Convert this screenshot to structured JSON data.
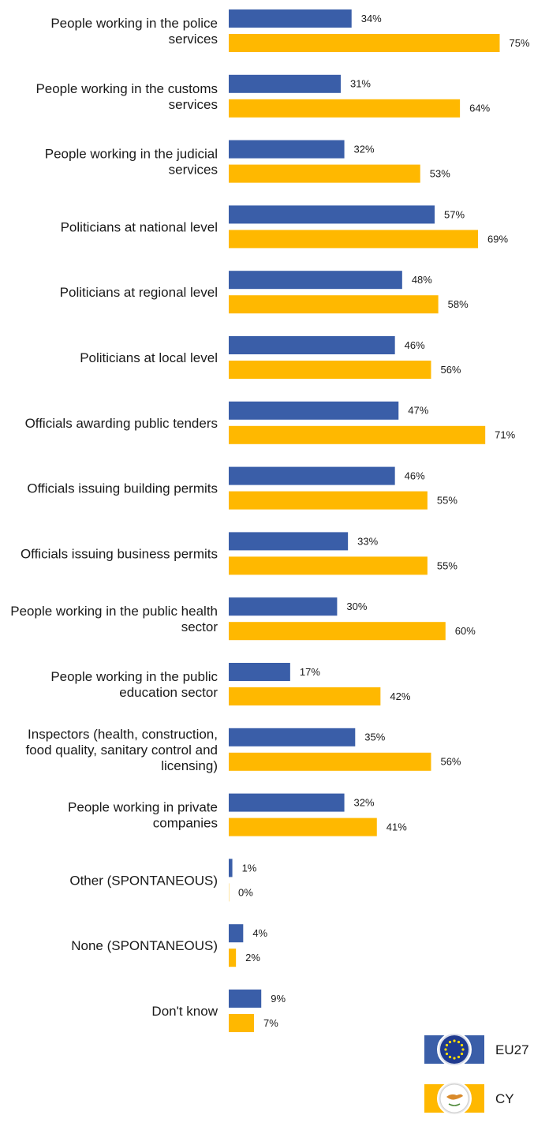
{
  "chart_data": {
    "type": "bar",
    "orientation": "horizontal",
    "unit": "%",
    "categories": [
      [
        "People working in the police",
        "services"
      ],
      [
        "People working in the customs",
        "services"
      ],
      [
        "People working in the judicial",
        "services"
      ],
      [
        "Politicians at national level"
      ],
      [
        "Politicians at regional level"
      ],
      [
        "Politicians at local level"
      ],
      [
        "Officials awarding public tenders"
      ],
      [
        "Officials issuing building permits"
      ],
      [
        "Officials issuing business permits"
      ],
      [
        "People working in the public health",
        "sector"
      ],
      [
        "People working in the public",
        "education sector"
      ],
      [
        "Inspectors (health, construction,",
        "food quality, sanitary control and",
        "licensing)"
      ],
      [
        "People working in private",
        "companies"
      ],
      [
        "Other (SPONTANEOUS)"
      ],
      [
        "None (SPONTANEOUS)"
      ],
      [
        "Don't know"
      ]
    ],
    "series": [
      {
        "name": "EU27",
        "color": "#3a5ea8",
        "values": [
          34,
          31,
          32,
          57,
          48,
          46,
          47,
          46,
          33,
          30,
          17,
          35,
          32,
          1,
          4,
          9
        ]
      },
      {
        "name": "CY",
        "color": "#ffb800",
        "values": [
          75,
          64,
          53,
          69,
          58,
          56,
          71,
          55,
          55,
          60,
          42,
          56,
          41,
          0,
          2,
          7
        ]
      }
    ],
    "xlim": [
      0,
      100
    ],
    "grid": false,
    "legend_position": "bottom-right",
    "legend_icons": [
      "eu-flag-icon",
      "cyprus-flag-icon"
    ]
  }
}
